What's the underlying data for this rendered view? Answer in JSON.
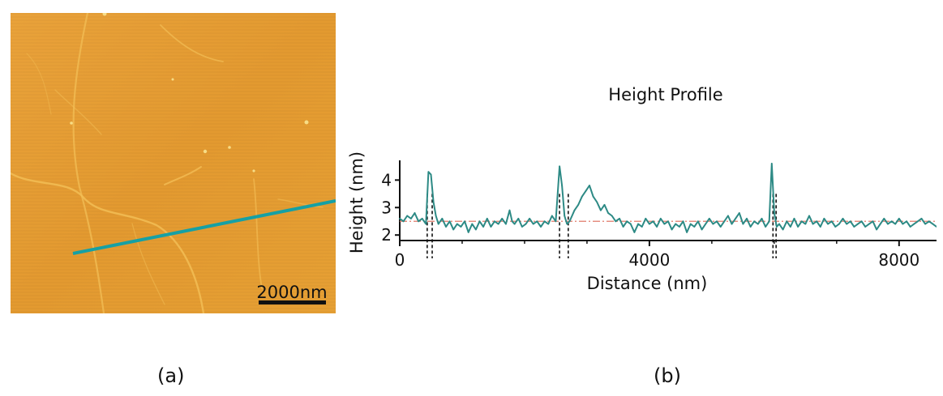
{
  "panels": {
    "left_label": "(a)",
    "right_label": "(b)"
  },
  "afm_image": {
    "scale_bar_label": "2000nm",
    "colors": {
      "base": "#e8a035",
      "dark": "#c8741c",
      "fibril": "#f4c25a",
      "profile_line": "#16a0a4"
    }
  },
  "chart_data": {
    "type": "line",
    "title": "Height Profile",
    "xlabel": "Distance (nm)",
    "ylabel": "Height (nm)",
    "xlim": [
      0,
      8600
    ],
    "ylim": [
      1.8,
      4.6
    ],
    "xticks": [
      0,
      4000,
      8000
    ],
    "yticks": [
      2,
      3,
      4
    ],
    "reference_line": {
      "y": 2.5,
      "style": "dash-dot",
      "color": "#e07a6a"
    },
    "markers": [
      {
        "x": 440
      },
      {
        "x": 520
      },
      {
        "x": 2560
      },
      {
        "x": 2700
      },
      {
        "x": 5980
      },
      {
        "x": 6030
      }
    ],
    "series": [
      {
        "name": "profile",
        "color": "#2d8a85",
        "x": [
          0,
          60,
          120,
          180,
          240,
          300,
          360,
          420,
          460,
          500,
          540,
          580,
          620,
          680,
          740,
          800,
          860,
          920,
          980,
          1040,
          1100,
          1160,
          1220,
          1280,
          1340,
          1400,
          1460,
          1520,
          1580,
          1640,
          1700,
          1760,
          1800,
          1840,
          1900,
          1960,
          2020,
          2080,
          2140,
          2200,
          2260,
          2320,
          2380,
          2440,
          2500,
          2560,
          2600,
          2640,
          2680,
          2720,
          2760,
          2800,
          2860,
          2920,
          2980,
          3040,
          3100,
          3160,
          3220,
          3280,
          3340,
          3400,
          3460,
          3520,
          3580,
          3640,
          3700,
          3760,
          3820,
          3880,
          3940,
          4000,
          4060,
          4120,
          4180,
          4240,
          4300,
          4360,
          4420,
          4480,
          4540,
          4600,
          4660,
          4720,
          4780,
          4840,
          4900,
          4960,
          5020,
          5080,
          5140,
          5200,
          5260,
          5320,
          5380,
          5440,
          5500,
          5560,
          5620,
          5680,
          5740,
          5800,
          5860,
          5920,
          5960,
          6000,
          6040,
          6080,
          6140,
          6200,
          6260,
          6320,
          6380,
          6440,
          6500,
          6560,
          6620,
          6680,
          6740,
          6800,
          6860,
          6920,
          6980,
          7040,
          7100,
          7160,
          7220,
          7280,
          7340,
          7400,
          7460,
          7520,
          7580,
          7640,
          7700,
          7760,
          7820,
          7880,
          7940,
          8000,
          8060,
          8120,
          8180,
          8240,
          8300,
          8360,
          8420,
          8480,
          8540,
          8600
        ],
        "y": [
          2.6,
          2.5,
          2.7,
          2.6,
          2.8,
          2.5,
          2.6,
          2.4,
          4.3,
          4.2,
          3.2,
          2.7,
          2.4,
          2.6,
          2.3,
          2.5,
          2.2,
          2.4,
          2.3,
          2.5,
          2.1,
          2.4,
          2.2,
          2.5,
          2.3,
          2.6,
          2.3,
          2.5,
          2.4,
          2.6,
          2.4,
          2.9,
          2.5,
          2.4,
          2.6,
          2.3,
          2.4,
          2.6,
          2.4,
          2.5,
          2.3,
          2.5,
          2.4,
          2.7,
          2.5,
          4.5,
          3.8,
          2.7,
          2.4,
          2.5,
          2.7,
          2.9,
          3.1,
          3.4,
          3.6,
          3.8,
          3.4,
          3.2,
          2.9,
          3.1,
          2.8,
          2.7,
          2.5,
          2.6,
          2.3,
          2.5,
          2.4,
          2.1,
          2.4,
          2.3,
          2.6,
          2.4,
          2.5,
          2.3,
          2.6,
          2.4,
          2.5,
          2.2,
          2.4,
          2.3,
          2.5,
          2.1,
          2.4,
          2.3,
          2.5,
          2.2,
          2.4,
          2.6,
          2.4,
          2.5,
          2.3,
          2.5,
          2.7,
          2.4,
          2.6,
          2.8,
          2.4,
          2.6,
          2.3,
          2.5,
          2.4,
          2.6,
          2.3,
          2.5,
          4.6,
          2.8,
          2.3,
          2.4,
          2.2,
          2.5,
          2.3,
          2.6,
          2.3,
          2.5,
          2.4,
          2.7,
          2.4,
          2.5,
          2.3,
          2.6,
          2.4,
          2.5,
          2.3,
          2.4,
          2.6,
          2.4,
          2.5,
          2.3,
          2.4,
          2.5,
          2.3,
          2.4,
          2.5,
          2.2,
          2.4,
          2.6,
          2.4,
          2.5,
          2.4,
          2.6,
          2.4,
          2.5,
          2.3,
          2.4,
          2.5,
          2.6,
          2.4,
          2.5,
          2.4,
          2.3
        ]
      }
    ]
  }
}
